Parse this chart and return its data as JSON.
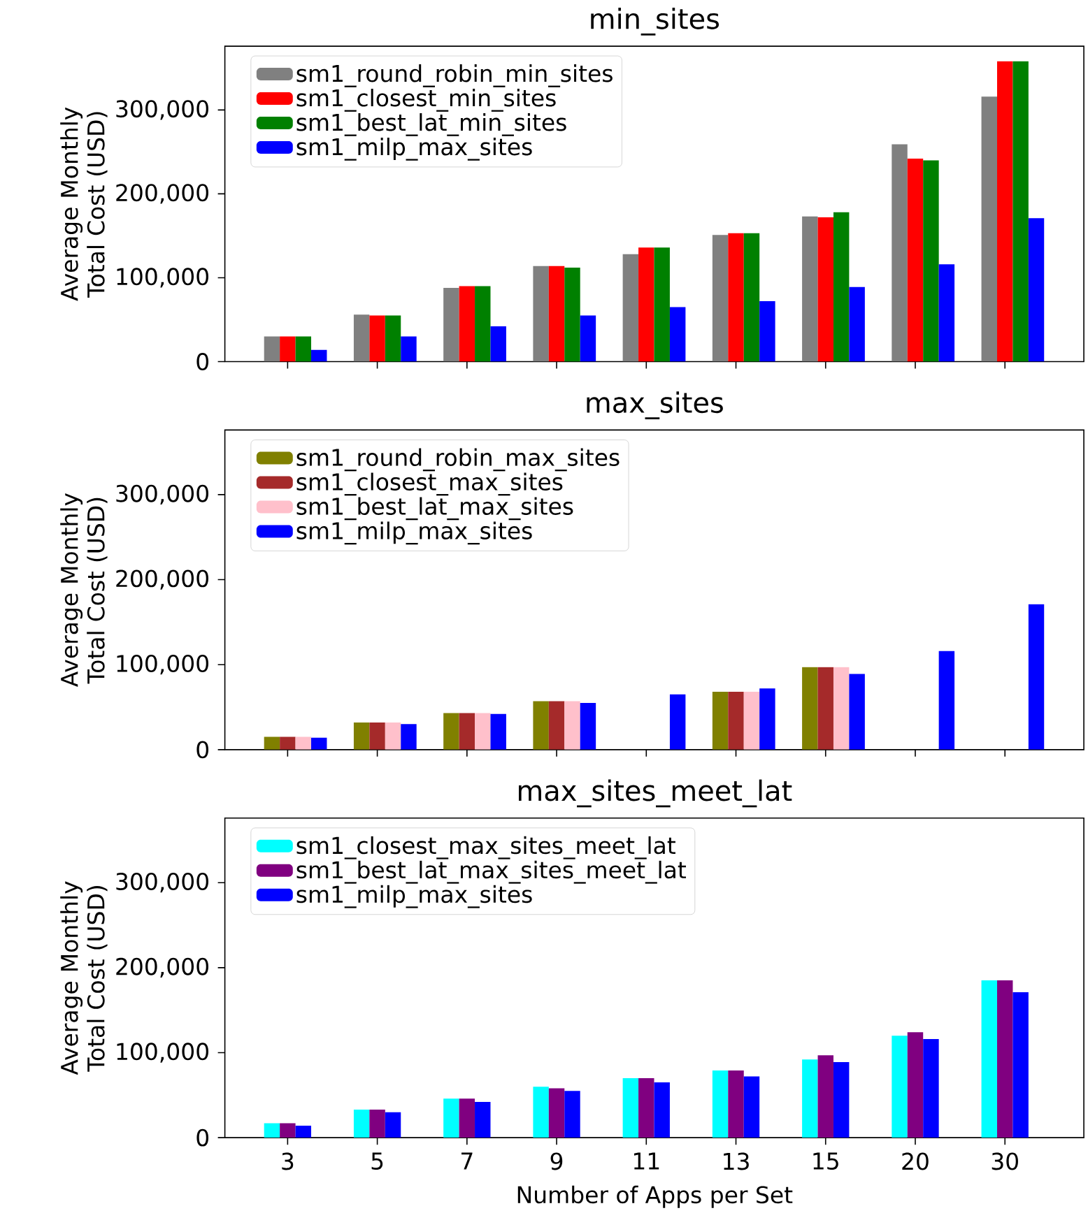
{
  "chart_data": [
    {
      "type": "bar",
      "title": "min_sites",
      "ylabel": "Average Monthly Total Cost (USD)",
      "categories": [
        "3",
        "5",
        "7",
        "9",
        "11",
        "13",
        "15",
        "20",
        "30"
      ],
      "ylim": [
        0,
        376000
      ],
      "yticks": [
        0,
        {
          "value": 100000,
          "label": "100,000"
        },
        {
          "value": 200000,
          "label": "200,000"
        },
        {
          "value": 300000,
          "label": "300,000"
        }
      ],
      "legend": "top left",
      "tick_labels": "y",
      "series": [
        {
          "name": "sm1_round_robin_min_sites",
          "color": "#808080",
          "values": [
            30000,
            56000,
            88000,
            114000,
            128000,
            151000,
            173000,
            259000,
            316000
          ]
        },
        {
          "name": "sm1_closest_min_sites",
          "color": "#ff0000",
          "values": [
            30000,
            55000,
            90000,
            114000,
            136000,
            153000,
            172000,
            242000,
            358000
          ]
        },
        {
          "name": "sm1_best_lat_min_sites",
          "color": "#008000",
          "values": [
            30000,
            55000,
            90000,
            112000,
            136000,
            153000,
            178000,
            240000,
            358000
          ]
        },
        {
          "name": "sm1_milp_max_sites",
          "color": "#0000ff",
          "values": [
            14000,
            30000,
            42000,
            55000,
            65000,
            72000,
            89000,
            116000,
            171000
          ]
        }
      ]
    },
    {
      "type": "bar",
      "title": "max_sites",
      "ylabel": "Average Monthly Total Cost (USD)",
      "categories": [
        "3",
        "5",
        "7",
        "9",
        "11",
        "13",
        "15",
        "20",
        "30"
      ],
      "ylim": [
        0,
        376000
      ],
      "yticks": [
        0,
        {
          "value": 100000,
          "label": "100,000"
        },
        {
          "value": 200000,
          "label": "200,000"
        },
        {
          "value": 300000,
          "label": "300,000"
        }
      ],
      "legend": "top left",
      "tick_labels": "y",
      "series": [
        {
          "name": "sm1_round_robin_max_sites",
          "color": "#808000",
          "values": [
            15000,
            32000,
            43000,
            57000,
            null,
            68000,
            97000,
            null,
            null
          ]
        },
        {
          "name": "sm1_closest_max_sites",
          "color": "#a52a2a",
          "values": [
            15000,
            32000,
            43000,
            57000,
            null,
            68000,
            97000,
            null,
            null
          ]
        },
        {
          "name": "sm1_best_lat_max_sites",
          "color": "#ffc0cb",
          "values": [
            15000,
            32000,
            43000,
            57000,
            null,
            68000,
            97000,
            null,
            null
          ]
        },
        {
          "name": "sm1_milp_max_sites",
          "color": "#0000ff",
          "values": [
            14000,
            30000,
            42000,
            55000,
            65000,
            72000,
            89000,
            116000,
            171000
          ]
        }
      ]
    },
    {
      "type": "bar",
      "title": "max_sites_meet_lat",
      "xlabel": "Number of Apps per Set",
      "ylabel": "Average Monthly Total Cost (USD)",
      "categories": [
        "3",
        "5",
        "7",
        "9",
        "11",
        "13",
        "15",
        "20",
        "30"
      ],
      "ylim": [
        0,
        376000
      ],
      "yticks": [
        0,
        {
          "value": 100000,
          "label": "100,000"
        },
        {
          "value": 200000,
          "label": "200,000"
        },
        {
          "value": 300000,
          "label": "300,000"
        }
      ],
      "legend": "top left",
      "series": [
        {
          "name": "sm1_closest_max_sites_meet_lat",
          "color": "#00ffff",
          "values": [
            17000,
            33000,
            46000,
            60000,
            70000,
            79000,
            92000,
            120000,
            185000
          ]
        },
        {
          "name": "sm1_best_lat_max_sites_meet_lat",
          "color": "#800080",
          "values": [
            17000,
            33000,
            46000,
            58000,
            70000,
            79000,
            97000,
            124000,
            185000
          ]
        },
        {
          "name": "sm1_milp_max_sites",
          "color": "#0000ff",
          "values": [
            14000,
            30000,
            42000,
            55000,
            65000,
            72000,
            89000,
            116000,
            171000
          ]
        }
      ]
    }
  ]
}
